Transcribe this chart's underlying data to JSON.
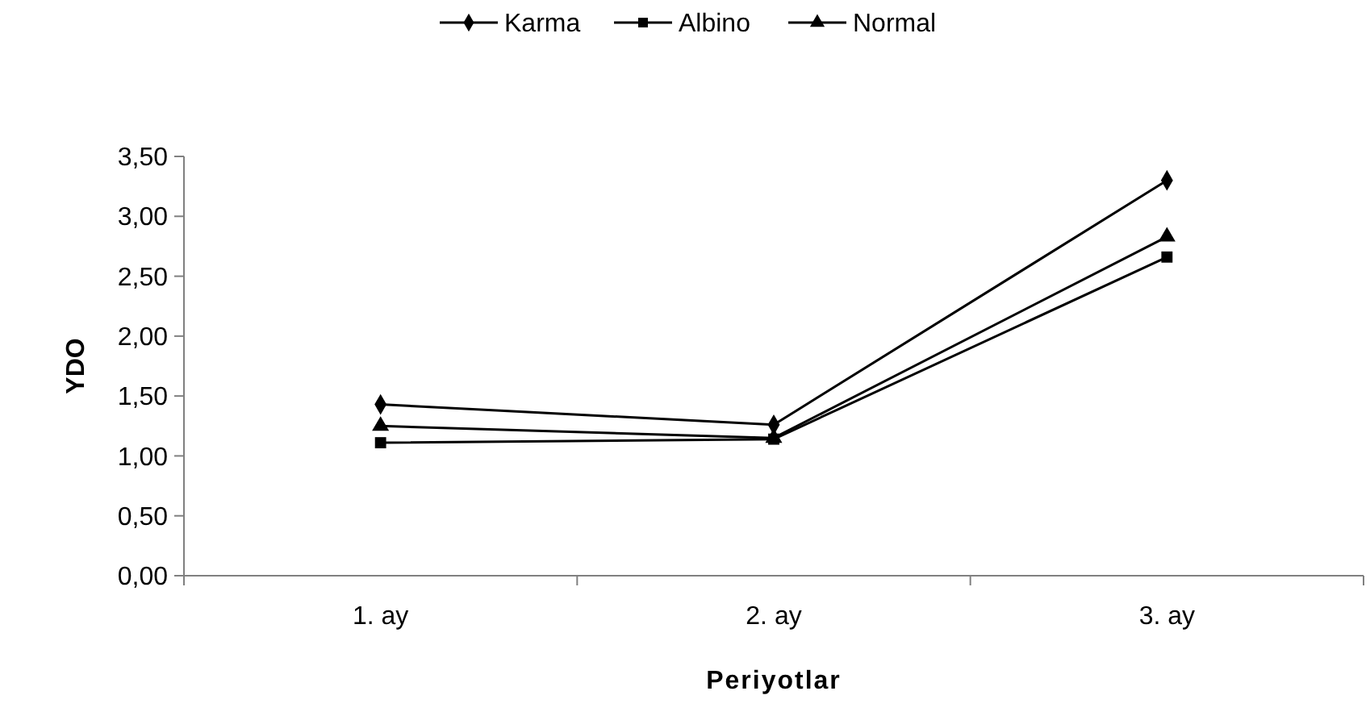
{
  "chart_data": {
    "type": "line",
    "xlabel": "Periyotlar",
    "ylabel": "YDO",
    "categories": [
      "1. ay",
      "2. ay",
      "3. ay"
    ],
    "series": [
      {
        "name": "Karma",
        "color": "#000000",
        "values": [
          1.43,
          1.26,
          3.3
        ],
        "marker": "diamond"
      },
      {
        "name": "Albino",
        "color": "#000000",
        "values": [
          1.11,
          1.14,
          2.66
        ],
        "marker": "square"
      },
      {
        "name": "Normal",
        "color": "#000000",
        "values": [
          1.25,
          1.15,
          2.83
        ],
        "marker": "triangle"
      }
    ],
    "ylim": [
      0,
      3.5
    ],
    "yticks": [
      {
        "value": 0,
        "label": "0,00"
      },
      {
        "value": 0.5,
        "label": "0,50"
      },
      {
        "value": 1,
        "label": "1,00"
      },
      {
        "value": 1.5,
        "label": "1,50"
      },
      {
        "value": 2,
        "label": "2,00"
      },
      {
        "value": 2.5,
        "label": "2,50"
      },
      {
        "value": 3,
        "label": "3,00"
      },
      {
        "value": 3.5,
        "label": "3,50"
      }
    ],
    "legend": "top",
    "grid": false,
    "line_style": "solid"
  }
}
